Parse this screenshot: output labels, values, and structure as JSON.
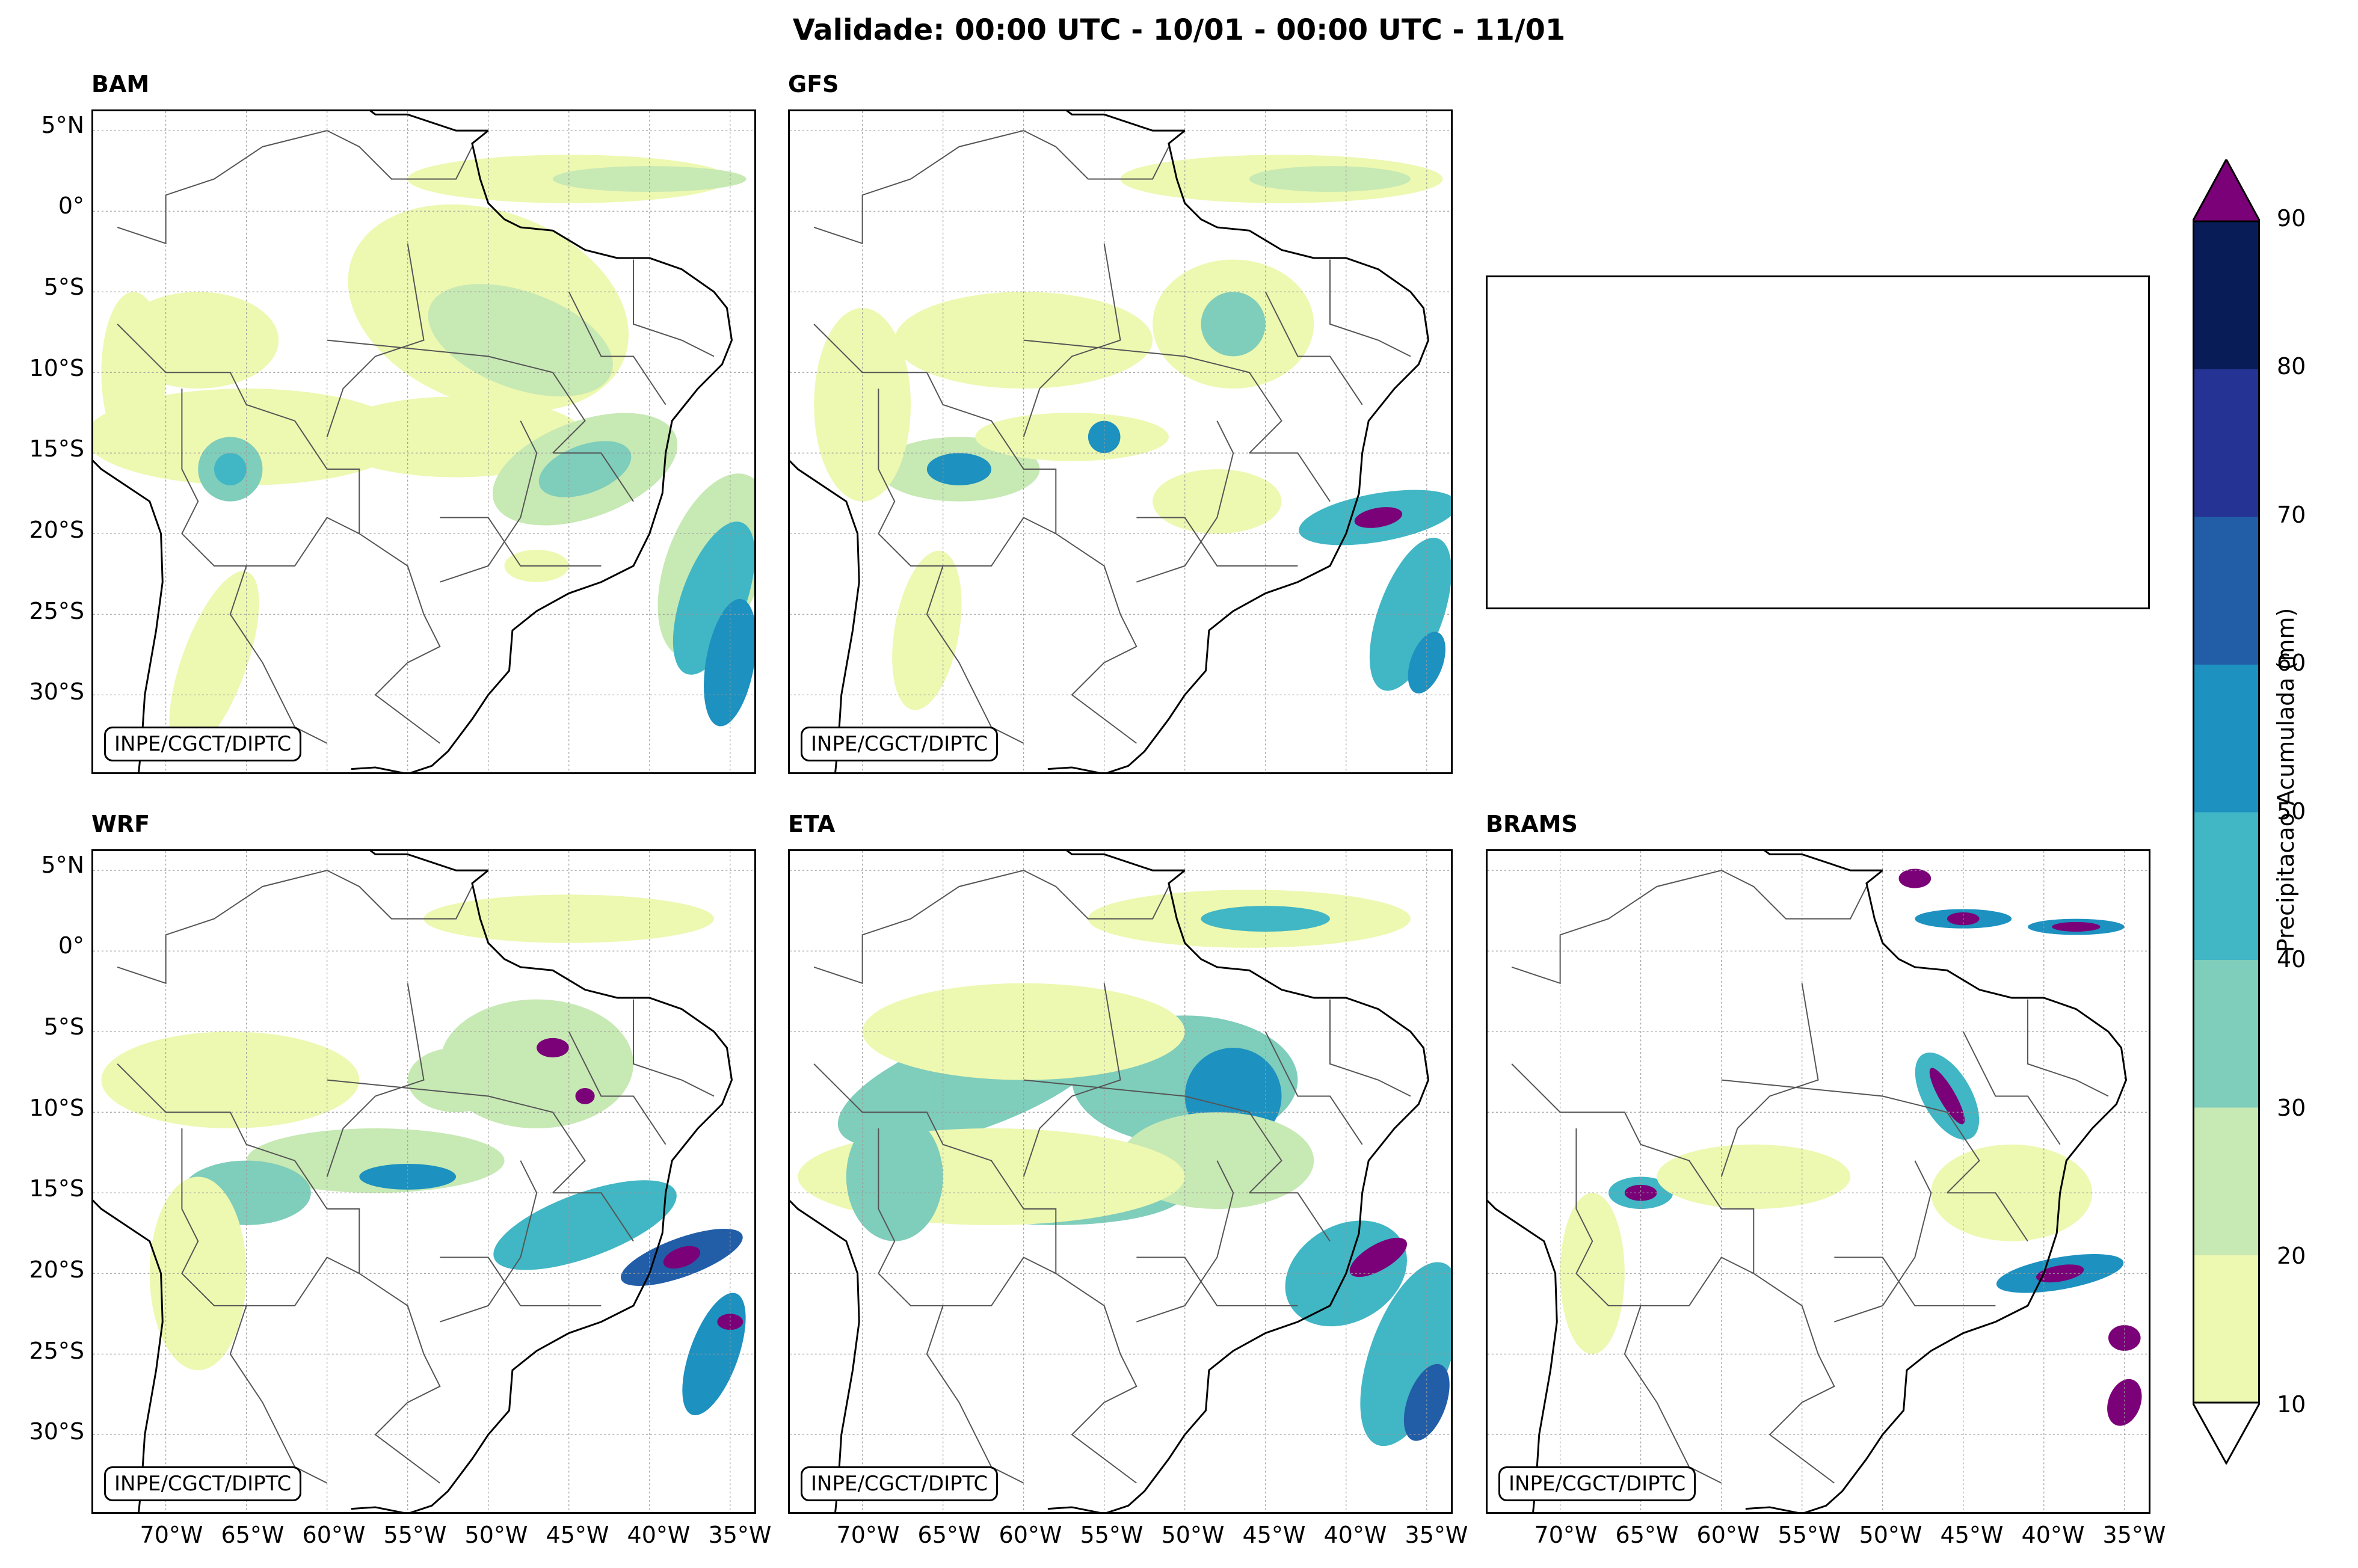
{
  "title": "Validade: 00:00 UTC - 10/01 - 00:00 UTC - 11/01",
  "credit": "INPE/CGCT/DIPTC",
  "panels": [
    {
      "id": "bam",
      "label": "BAM"
    },
    {
      "id": "gfs",
      "label": "GFS"
    },
    {
      "id": "wrf",
      "label": "WRF"
    },
    {
      "id": "eta",
      "label": "ETA"
    },
    {
      "id": "brams",
      "label": "BRAMS"
    }
  ],
  "lat_labels": [
    "5°N",
    "0°",
    "5°S",
    "10°S",
    "15°S",
    "20°S",
    "25°S",
    "30°S"
  ],
  "lon_labels": [
    "70°W",
    "65°W",
    "60°W",
    "55°W",
    "50°W",
    "45°W",
    "40°W",
    "35°W"
  ],
  "colorbar": {
    "label": "Precipitacao Acumulada (mm)",
    "ticks": [
      "10",
      "20",
      "30",
      "40",
      "50",
      "60",
      "70",
      "80",
      "90"
    ],
    "colors": [
      "#edf8b1",
      "#c7e9b4",
      "#7fcdbb",
      "#41b6c4",
      "#1d91c0",
      "#225ea8",
      "#253494",
      "#081d58"
    ],
    "over_color": "#7a0177",
    "under_color": "#ffffff"
  }
}
